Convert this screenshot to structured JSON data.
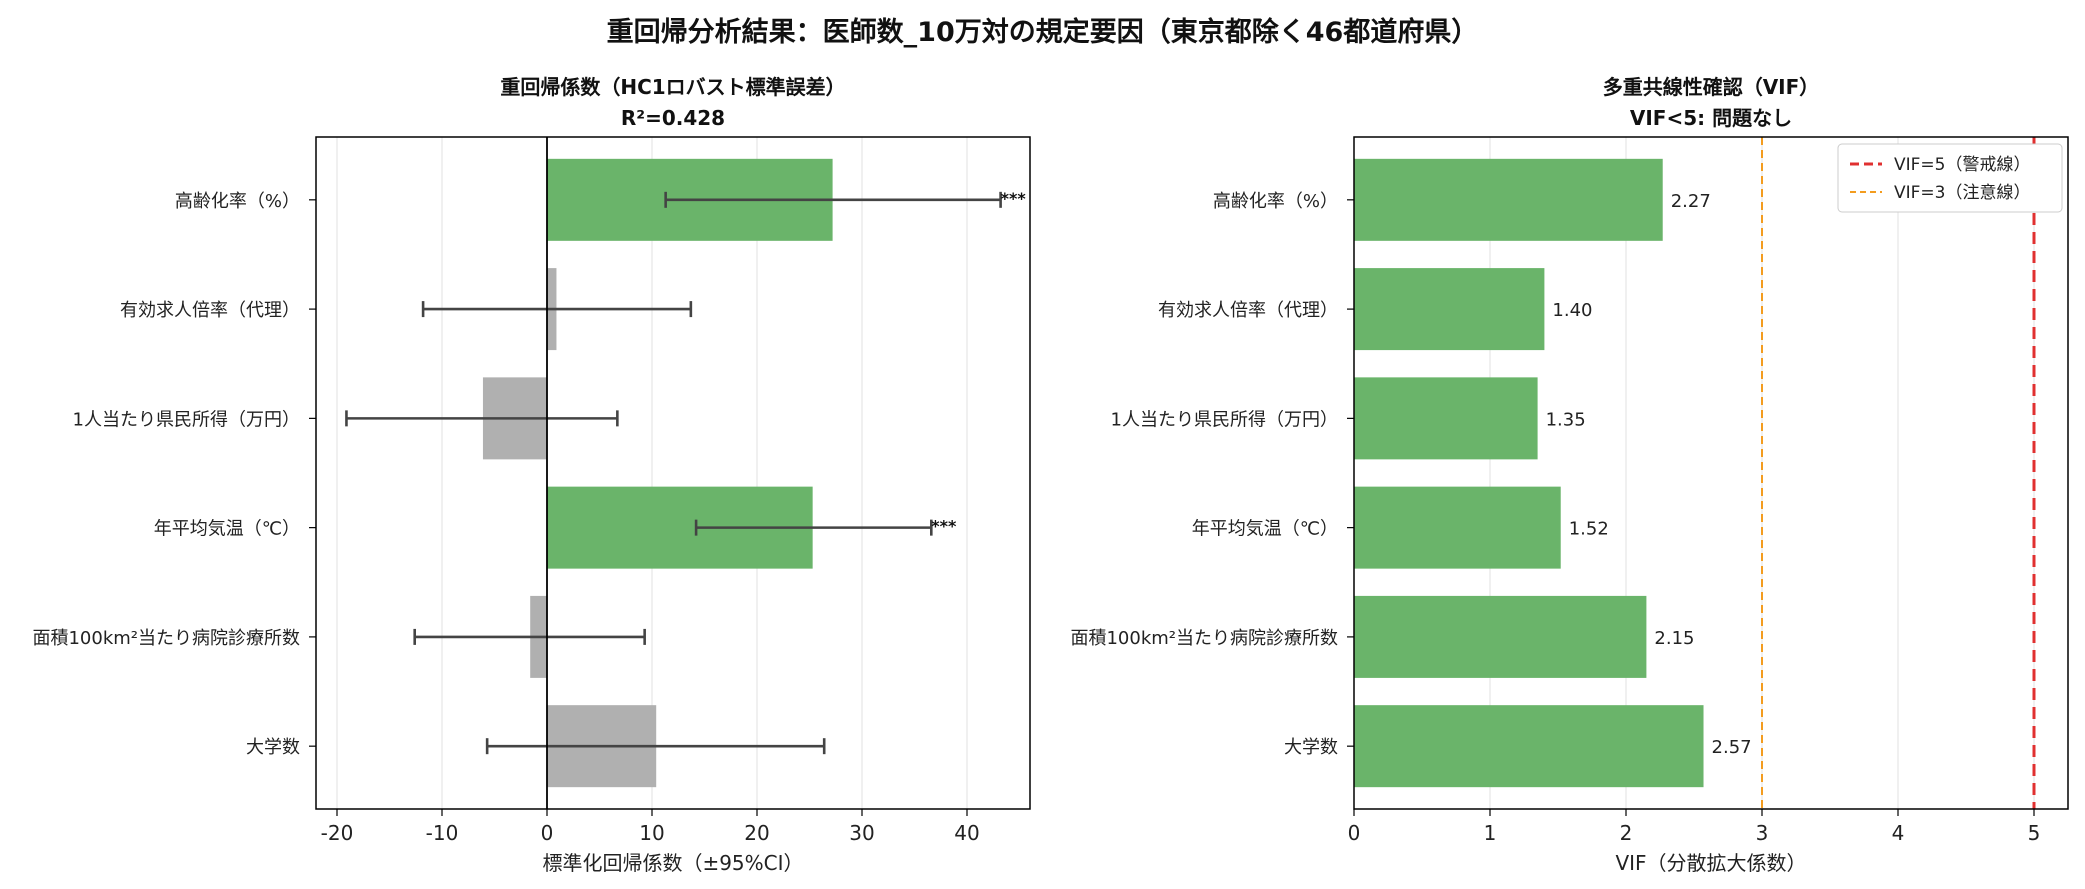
{
  "figure_title": "重回帰分析結果：医師数_10万対の規定要因（東京都除く46都道府県）",
  "colors": {
    "significant": "#6ab46a",
    "not_significant": "#b0b0b0",
    "errorbar": "#444444",
    "vif_bar": "#6ab46a",
    "vif5_line": "#e03030",
    "vif3_line": "#f39c1f",
    "grid": "#e0e0e0"
  },
  "chart_data": [
    {
      "type": "bar",
      "orientation": "horizontal",
      "title": "重回帰係数（HC1ロバスト標準誤差）",
      "subtitle": "R²=0.428",
      "xlabel": "標準化回帰係数（±95%CI）",
      "ylabel": "",
      "xlim": [
        -22,
        46
      ],
      "xticks": [
        -20,
        -10,
        0,
        10,
        20,
        30,
        40
      ],
      "xtick_labels": [
        "-20",
        "-10",
        "0",
        "10",
        "20",
        "30",
        "40"
      ],
      "grid": "vertical",
      "categories": [
        "高齢化率（%）",
        "有効求人倍率（代理）",
        "1人当たり県民所得（万円）",
        "年平均気温（℃）",
        "面積100km²当たり病院診療所数",
        "大学数"
      ],
      "values": [
        27.2,
        0.9,
        -6.1,
        25.3,
        -1.6,
        10.4
      ],
      "ci_low": [
        11.3,
        -11.8,
        -19.1,
        14.2,
        -12.6,
        -5.7
      ],
      "ci_high": [
        43.2,
        13.7,
        6.7,
        36.6,
        9.3,
        26.4
      ],
      "significant": [
        true,
        false,
        false,
        true,
        false,
        false
      ],
      "annotations": [
        "***",
        "",
        "",
        "***",
        "",
        ""
      ]
    },
    {
      "type": "bar",
      "orientation": "horizontal",
      "title": "多重共線性確認（VIF）",
      "subtitle": "VIF<5: 問題なし",
      "xlabel": "VIF（分散拡大係数）",
      "ylabel": "",
      "xlim": [
        0,
        5.25
      ],
      "xticks": [
        0,
        1,
        2,
        3,
        4,
        5
      ],
      "xtick_labels": [
        "0",
        "1",
        "2",
        "3",
        "4",
        "5"
      ],
      "grid": "vertical",
      "categories": [
        "高齢化率（%）",
        "有効求人倍率（代理）",
        "1人当たり県民所得（万円）",
        "年平均気温（℃）",
        "面積100km²当たり病院診療所数",
        "大学数"
      ],
      "values": [
        2.27,
        1.4,
        1.35,
        1.52,
        2.15,
        2.57
      ],
      "value_labels": [
        "2.27",
        "1.40",
        "1.35",
        "1.52",
        "2.15",
        "2.57"
      ],
      "reference_lines": [
        {
          "value": 5,
          "label": "VIF=5（警戒線）",
          "color": "#e03030",
          "style": "dashed"
        },
        {
          "value": 3,
          "label": "VIF=3（注意線）",
          "color": "#f39c1f",
          "style": "dashed"
        }
      ],
      "legend": {
        "position": "top-right"
      }
    }
  ]
}
